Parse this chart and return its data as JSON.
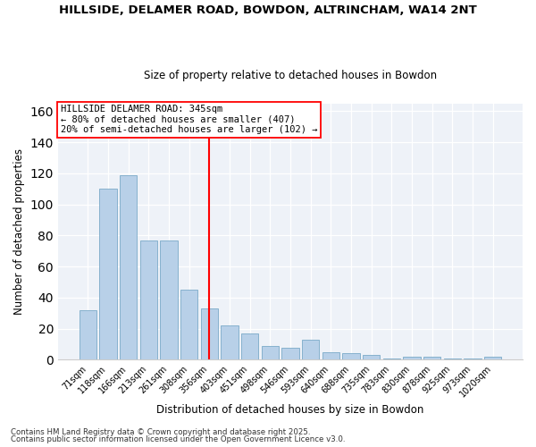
{
  "title": "HILLSIDE, DELAMER ROAD, BOWDON, ALTRINCHAM, WA14 2NT",
  "subtitle": "Size of property relative to detached houses in Bowdon",
  "xlabel": "Distribution of detached houses by size in Bowdon",
  "ylabel": "Number of detached properties",
  "categories": [
    "71sqm",
    "118sqm",
    "166sqm",
    "213sqm",
    "261sqm",
    "308sqm",
    "356sqm",
    "403sqm",
    "451sqm",
    "498sqm",
    "546sqm",
    "593sqm",
    "640sqm",
    "688sqm",
    "735sqm",
    "783sqm",
    "830sqm",
    "878sqm",
    "925sqm",
    "973sqm",
    "1020sqm"
  ],
  "values": [
    32,
    110,
    119,
    77,
    77,
    45,
    33,
    22,
    17,
    9,
    8,
    13,
    5,
    4,
    3,
    1,
    2,
    2,
    1,
    1,
    2
  ],
  "bar_color": "#b8d0e8",
  "bar_edge_color": "#7aaac8",
  "vline_index": 6,
  "vline_color": "red",
  "annotation_title": "HILLSIDE DELAMER ROAD: 345sqm",
  "annotation_line1": "← 80% of detached houses are smaller (407)",
  "annotation_line2": "20% of semi-detached houses are larger (102) →",
  "ylim": [
    0,
    165
  ],
  "yticks": [
    0,
    20,
    40,
    60,
    80,
    100,
    120,
    140,
    160
  ],
  "footnote1": "Contains HM Land Registry data © Crown copyright and database right 2025.",
  "footnote2": "Contains public sector information licensed under the Open Government Licence v3.0.",
  "bg_color": "#eef2f8",
  "fig_bg_color": "#ffffff"
}
